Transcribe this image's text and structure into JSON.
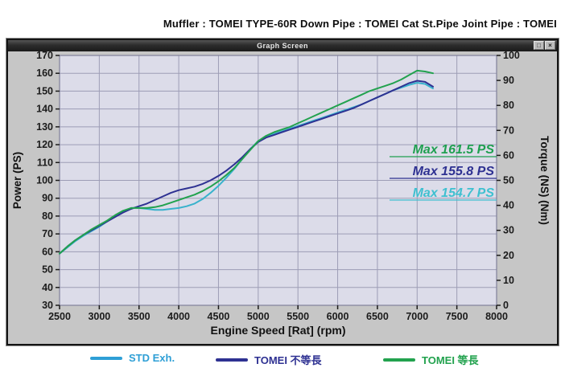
{
  "page_title": "Muffler : TOMEI TYPE-60R Down Pipe : TOMEI Cat St.Pipe Joint Pipe : TOMEI",
  "window": {
    "title": "Graph Screen",
    "restore_button": "□",
    "close_button": "×"
  },
  "chart_data": {
    "type": "line",
    "title": "Graph Screen",
    "xlabel": "Engine Speed [Rat] (rpm)",
    "ylabel_left": "Power (PS)",
    "ylabel_right": "Torque (NS) (Nm)",
    "xlim": [
      2500,
      8000
    ],
    "xtick_step": 500,
    "ylim_left": [
      30,
      170
    ],
    "ytick_step_left": 10,
    "ylim_right": [
      0,
      100
    ],
    "ytick_step_right": 10,
    "grid": true,
    "plot_bg": "#dcdce9",
    "grid_color": "#9d9db6",
    "axis_text_color": "#1b1b1b",
    "x_start": 2500,
    "x_step": 100,
    "series": [
      {
        "name": "STD Exh.",
        "color": "#38b2cc",
        "values": [
          59,
          62.5,
          66,
          69,
          71.5,
          74,
          77,
          80,
          82.5,
          84.5,
          84.5,
          84,
          83.5,
          83.5,
          84,
          84.5,
          85.5,
          87,
          89.5,
          93,
          97,
          101.5,
          106.5,
          112,
          117.5,
          122,
          124.5,
          126,
          127.5,
          129,
          130.5,
          132,
          133.5,
          135,
          136.5,
          138,
          139.5,
          141,
          142.5,
          144.5,
          146.5,
          148.5,
          150.5,
          152,
          153.5,
          154.7,
          154,
          151.5
        ]
      },
      {
        "name": "TOMEI 不等長",
        "color": "#2e3192",
        "values": [
          59,
          63,
          66.5,
          69.5,
          72,
          74.5,
          77,
          79.5,
          82,
          84,
          85.5,
          87,
          89,
          91,
          93,
          94.5,
          95.5,
          96.5,
          98,
          100,
          102.5,
          105.5,
          109,
          113,
          117.5,
          121.5,
          124,
          125.5,
          127,
          128.5,
          130,
          131.5,
          133,
          134.5,
          136,
          137.5,
          139,
          140.5,
          142.5,
          144.5,
          146.5,
          148.5,
          150.5,
          152.5,
          154.5,
          155.8,
          155.2,
          152.5
        ]
      },
      {
        "name": "TOMEI 等長",
        "color": "#22a24e",
        "values": [
          59,
          63,
          66.5,
          69.5,
          72.5,
          75,
          77.5,
          80.5,
          83,
          84.5,
          84.5,
          84.5,
          85,
          86,
          87.5,
          89,
          90.5,
          92,
          94,
          96.5,
          99.5,
          103,
          107,
          112,
          117,
          122,
          125,
          127,
          128.5,
          130,
          132,
          134,
          136,
          138,
          140,
          142,
          144,
          146,
          148,
          150,
          151.5,
          153,
          154.5,
          156.5,
          159,
          161.5,
          161,
          160
        ]
      }
    ],
    "annotations": [
      {
        "text": "Max 161.5 PS",
        "color": "#1fa050"
      },
      {
        "text": "Max 155.8 PS",
        "color": "#2e3192"
      },
      {
        "text": "Max 154.7 PS",
        "color": "#3fc0d0"
      }
    ],
    "legend_position": "bottom"
  },
  "legend": [
    {
      "label": "STD Exh.",
      "color": "#2e9fd6"
    },
    {
      "label": "TOMEI 不等長",
      "color": "#2e3192"
    },
    {
      "label": "TOMEI 等長",
      "color": "#22a24e"
    }
  ]
}
